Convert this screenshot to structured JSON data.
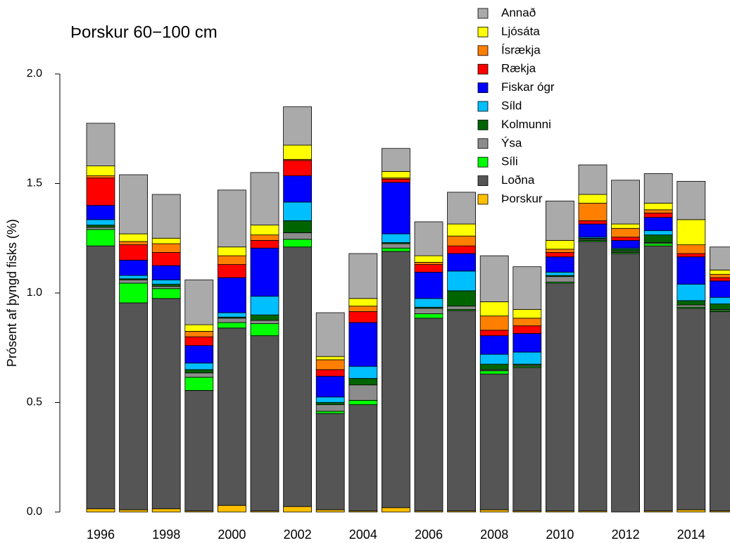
{
  "chart_data": {
    "type": "stacked_bar",
    "title": "Þorskur 60−100 cm",
    "y_label": "Prósent af þyngd fisks (%)",
    "categories": [
      "1996",
      null,
      "1998",
      null,
      "2000",
      null,
      "2002",
      null,
      "2004",
      null,
      "2006",
      null,
      "2008",
      null,
      "2010",
      null,
      "2012",
      null,
      "2014",
      null
    ],
    "ylim": [
      0,
      2.0
    ],
    "yticks": [
      {
        "value": 0,
        "label": "0.0"
      },
      {
        "value": 0.5,
        "label": "0.5"
      },
      {
        "value": 1.0,
        "label": "1.0"
      },
      {
        "value": 1.5,
        "label": "1.5"
      },
      {
        "value": 2.0,
        "label": "2.0"
      }
    ],
    "legend": "top-right",
    "series": [
      {
        "name": "Þorskur",
        "color": "#FFC000",
        "values": [
          0.015,
          0.01,
          0.015,
          0.005,
          0.03,
          0.005,
          0.025,
          0.01,
          0.005,
          0.02,
          0.005,
          0.005,
          0.01,
          0.005,
          0.005,
          0.005,
          0.0,
          0.005,
          0.01,
          0.005
        ]
      },
      {
        "name": "Loðna",
        "color": "#555555",
        "values": [
          1.2,
          0.945,
          0.96,
          0.55,
          0.81,
          0.8,
          1.185,
          0.44,
          0.485,
          1.17,
          0.88,
          0.915,
          0.62,
          0.655,
          1.04,
          1.23,
          1.18,
          1.21,
          0.92,
          0.91
        ]
      },
      {
        "name": "Síli",
        "color": "#00FF00",
        "values": [
          0.075,
          0.09,
          0.045,
          0.06,
          0.025,
          0.055,
          0.035,
          0.01,
          0.02,
          0.015,
          0.02,
          0.005,
          0.015,
          0.005,
          0.005,
          0.005,
          0.005,
          0.01,
          0.005,
          0.005
        ]
      },
      {
        "name": "Ýsa",
        "color": "#8C8C8C",
        "values": [
          0.01,
          0.015,
          0.01,
          0.02,
          0.02,
          0.015,
          0.03,
          0.03,
          0.07,
          0.02,
          0.025,
          0.015,
          0.005,
          0.005,
          0.025,
          0.005,
          0.005,
          0.005,
          0.01,
          0.005
        ]
      },
      {
        "name": "Kolmunni",
        "color": "#006400",
        "values": [
          0.01,
          0.005,
          0.01,
          0.015,
          0.005,
          0.025,
          0.055,
          0.01,
          0.03,
          0.005,
          0.005,
          0.07,
          0.025,
          0.005,
          0.005,
          0.005,
          0.01,
          0.035,
          0.02,
          0.025
        ]
      },
      {
        "name": "Síld",
        "color": "#00BFFF",
        "values": [
          0.025,
          0.015,
          0.02,
          0.03,
          0.02,
          0.085,
          0.085,
          0.025,
          0.055,
          0.04,
          0.04,
          0.09,
          0.045,
          0.055,
          0.015,
          0.005,
          0.005,
          0.02,
          0.075,
          0.03
        ]
      },
      {
        "name": "Fiskar ógr",
        "color": "#0000FF",
        "values": [
          0.065,
          0.07,
          0.065,
          0.08,
          0.16,
          0.22,
          0.12,
          0.095,
          0.2,
          0.235,
          0.12,
          0.08,
          0.085,
          0.085,
          0.07,
          0.06,
          0.035,
          0.06,
          0.125,
          0.075
        ]
      },
      {
        "name": "Rækja",
        "color": "#FF0000",
        "values": [
          0.125,
          0.07,
          0.06,
          0.04,
          0.06,
          0.035,
          0.07,
          0.03,
          0.05,
          0.015,
          0.035,
          0.035,
          0.025,
          0.035,
          0.02,
          0.015,
          0.015,
          0.02,
          0.015,
          0.015
        ]
      },
      {
        "name": "Ísrækja",
        "color": "#FF7F00",
        "values": [
          0.01,
          0.015,
          0.04,
          0.025,
          0.04,
          0.025,
          0.005,
          0.045,
          0.025,
          0.005,
          0.01,
          0.045,
          0.065,
          0.035,
          0.015,
          0.08,
          0.04,
          0.015,
          0.04,
          0.015
        ]
      },
      {
        "name": "Ljósáta",
        "color": "#FFFF00",
        "values": [
          0.045,
          0.035,
          0.025,
          0.03,
          0.04,
          0.045,
          0.065,
          0.015,
          0.035,
          0.03,
          0.03,
          0.055,
          0.065,
          0.04,
          0.04,
          0.04,
          0.02,
          0.03,
          0.115,
          0.02
        ]
      },
      {
        "name": "Annað",
        "color": "#AAAAAA",
        "values": [
          0.195,
          0.27,
          0.2,
          0.205,
          0.26,
          0.24,
          0.175,
          0.2,
          0.205,
          0.105,
          0.155,
          0.145,
          0.21,
          0.195,
          0.18,
          0.135,
          0.2,
          0.135,
          0.175,
          0.105
        ]
      }
    ]
  }
}
